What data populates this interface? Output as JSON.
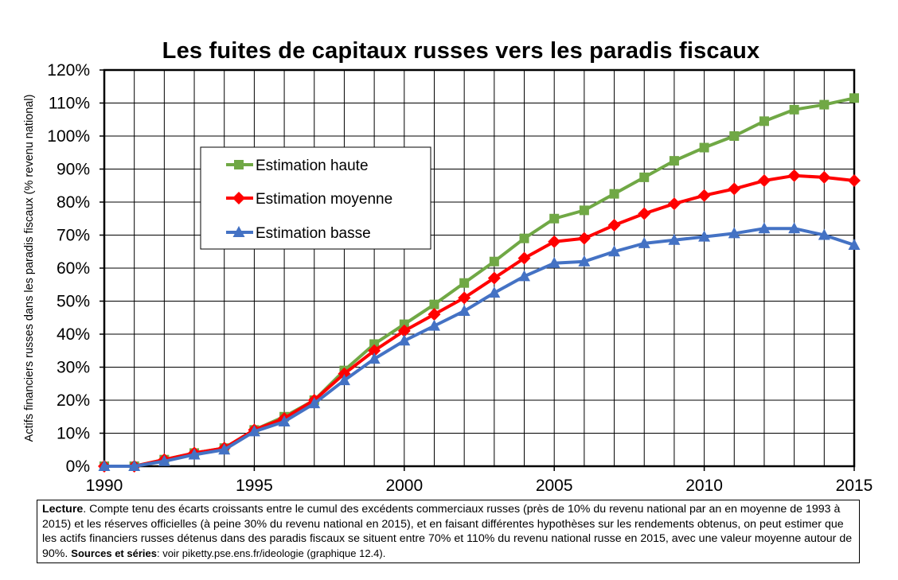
{
  "chart_data": {
    "type": "line",
    "title": "Les fuites de capitaux russes vers les paradis fiscaux",
    "ylabel": "Actifs financiers russes dans les paradis fiscaux (% revenu national)",
    "xlabel": "",
    "xlim": [
      1990,
      2015
    ],
    "ylim": [
      0,
      120
    ],
    "x_tick_labels": [
      "1990",
      "1995",
      "2000",
      "2005",
      "2010",
      "2015"
    ],
    "y_tick_labels": [
      "0%",
      "10%",
      "20%",
      "30%",
      "40%",
      "50%",
      "60%",
      "70%",
      "80%",
      "90%",
      "100%",
      "110%",
      "120%"
    ],
    "grid": true,
    "legend_position": "upper-left",
    "x": [
      1990,
      1991,
      1992,
      1993,
      1994,
      1995,
      1996,
      1997,
      1998,
      1999,
      2000,
      2001,
      2002,
      2003,
      2004,
      2005,
      2006,
      2007,
      2008,
      2009,
      2010,
      2011,
      2012,
      2013,
      2014,
      2015
    ],
    "series": [
      {
        "name": "Estimation haute",
        "color": "#70a845",
        "marker": "square",
        "values": [
          0,
          0,
          2,
          4,
          5.5,
          11,
          15,
          20,
          29,
          37,
          43,
          49,
          55.5,
          62,
          69,
          75,
          77.5,
          82.5,
          87.5,
          92.5,
          96.5,
          100,
          104.5,
          108,
          109.5,
          111.5
        ]
      },
      {
        "name": "Estimation moyenne",
        "color": "#ff0000",
        "marker": "diamond",
        "values": [
          0,
          0,
          2,
          4,
          5.5,
          11,
          14.5,
          20,
          28,
          35,
          41,
          46,
          51,
          57,
          63,
          68,
          69,
          73,
          76.5,
          79.5,
          82,
          84,
          86.5,
          88,
          87.5,
          86.5
        ]
      },
      {
        "name": "Estimation basse",
        "color": "#4472c4",
        "marker": "triangle",
        "values": [
          0,
          0,
          1.5,
          3.5,
          5,
          10.5,
          13.5,
          19,
          26,
          32.5,
          38,
          42.5,
          47,
          52.5,
          57.5,
          61.5,
          62,
          65,
          67.5,
          68.5,
          69.5,
          70.5,
          72,
          72,
          70,
          67
        ]
      }
    ]
  },
  "note": {
    "lead": "Lecture",
    "text": ". Compte tenu des écarts croissants entre le cumul des excédents commerciaux russes (près de 10% du revenu national par an en moyenne de 1993 à 2015) et les réserves officielles (à peine 30% du revenu national en 2015), et en faisant différentes hypothèses sur les rendements obtenus, on peut estimer que les actifs financiers russes détenus dans des paradis fiscaux se situent entre 70% et 110% du revenu national russe en 2015, avec une valeur moyenne autour de 90%. ",
    "sources_label": "Sources et séries",
    "sources_text": ": voir piketty.pse.ens.fr/ideologie (graphique 12.4)."
  }
}
